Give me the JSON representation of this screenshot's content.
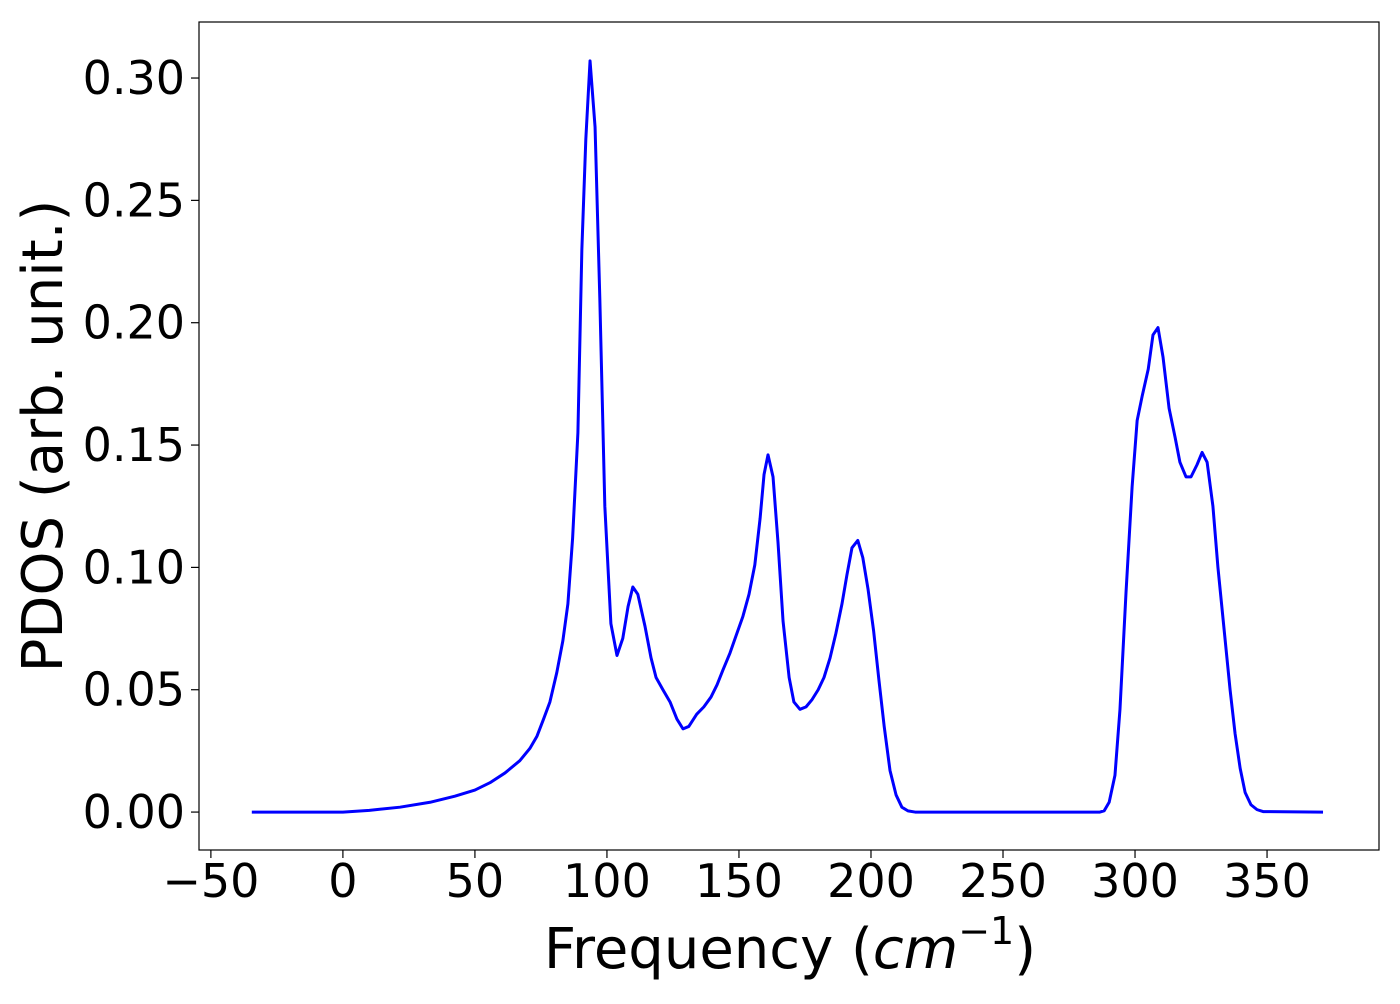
{
  "chart_data": {
    "type": "line",
    "xlabel": [
      "Frequency (",
      "cm",
      "−1",
      ")"
    ],
    "ylabel": "PDOS (arb. unit.)",
    "x": [
      -34.5,
      0,
      10,
      21.6,
      33,
      42.4,
      50,
      55.7,
      61.4,
      67,
      70.8,
      73.5,
      76,
      78.4,
      81,
      83.3,
      85.2,
      87,
      89,
      90.5,
      92,
      93.6,
      95.5,
      97.3,
      99.2,
      101.5,
      103.8,
      106,
      108,
      109.8,
      111.7,
      114.4,
      116.7,
      118.6,
      121.2,
      123.9,
      126.5,
      128.8,
      131,
      134,
      136.7,
      139.4,
      141.7,
      143.9,
      146.6,
      149.2,
      151.5,
      153.8,
      156,
      158,
      159.5,
      161,
      162.9,
      164.8,
      166.7,
      169,
      170.8,
      173.1,
      175.4,
      177.7,
      180,
      182.2,
      184.5,
      186.7,
      189,
      190.9,
      192.8,
      195,
      196.9,
      198.9,
      201,
      203,
      205,
      207.2,
      209.5,
      211.7,
      214,
      216.7,
      248.9,
      286.7,
      288.3,
      290.2,
      292.4,
      294.3,
      296.6,
      298.9,
      300.8,
      302.7,
      305,
      306.8,
      308.7,
      310.6,
      312.9,
      315.2,
      317,
      319.3,
      321.2,
      323.5,
      325.4,
      327.3,
      329.5,
      331.4,
      333.7,
      336,
      337.9,
      339.8,
      341.7,
      343.9,
      346.2,
      348.5,
      371.2
    ],
    "series": [
      {
        "color": "#0000ff",
        "values": [
          0,
          0,
          0.0007,
          0.002,
          0.004,
          0.0065,
          0.009,
          0.012,
          0.016,
          0.021,
          0.026,
          0.031,
          0.038,
          0.045,
          0.057,
          0.07,
          0.085,
          0.112,
          0.155,
          0.23,
          0.275,
          0.307,
          0.28,
          0.21,
          0.125,
          0.077,
          0.064,
          0.071,
          0.084,
          0.092,
          0.089,
          0.076,
          0.063,
          0.055,
          0.05,
          0.045,
          0.038,
          0.034,
          0.035,
          0.04,
          0.043,
          0.047,
          0.052,
          0.058,
          0.065,
          0.073,
          0.08,
          0.089,
          0.101,
          0.12,
          0.138,
          0.146,
          0.137,
          0.11,
          0.078,
          0.055,
          0.045,
          0.042,
          0.043,
          0.046,
          0.05,
          0.055,
          0.063,
          0.073,
          0.085,
          0.097,
          0.108,
          0.111,
          0.104,
          0.091,
          0.074,
          0.054,
          0.035,
          0.017,
          0.007,
          0.002,
          0.0005,
          0,
          0,
          0,
          0.0005,
          0.004,
          0.015,
          0.042,
          0.09,
          0.133,
          0.16,
          0.17,
          0.181,
          0.195,
          0.198,
          0.186,
          0.165,
          0.153,
          0.143,
          0.137,
          0.137,
          0.142,
          0.147,
          0.143,
          0.125,
          0.1,
          0.075,
          0.05,
          0.032,
          0.018,
          0.008,
          0.003,
          0.001,
          0.0002,
          0
        ]
      }
    ],
    "xlim": [
      -54.5,
      392.4
    ],
    "ylim": [
      -0.0155,
      0.3229
    ],
    "xticks": [
      {
        "value": -50,
        "label": "−50"
      },
      0,
      50,
      100,
      150,
      200,
      250,
      300,
      350
    ],
    "yticks": [
      {
        "value": 0,
        "label": "0.00"
      },
      {
        "value": 0.05,
        "label": "0.05"
      },
      {
        "value": 0.1,
        "label": "0.10"
      },
      {
        "value": 0.15,
        "label": "0.15"
      },
      {
        "value": 0.2,
        "label": "0.20"
      },
      {
        "value": 0.25,
        "label": "0.25"
      },
      {
        "value": 0.3,
        "label": "0.30"
      }
    ],
    "grid": false
  }
}
